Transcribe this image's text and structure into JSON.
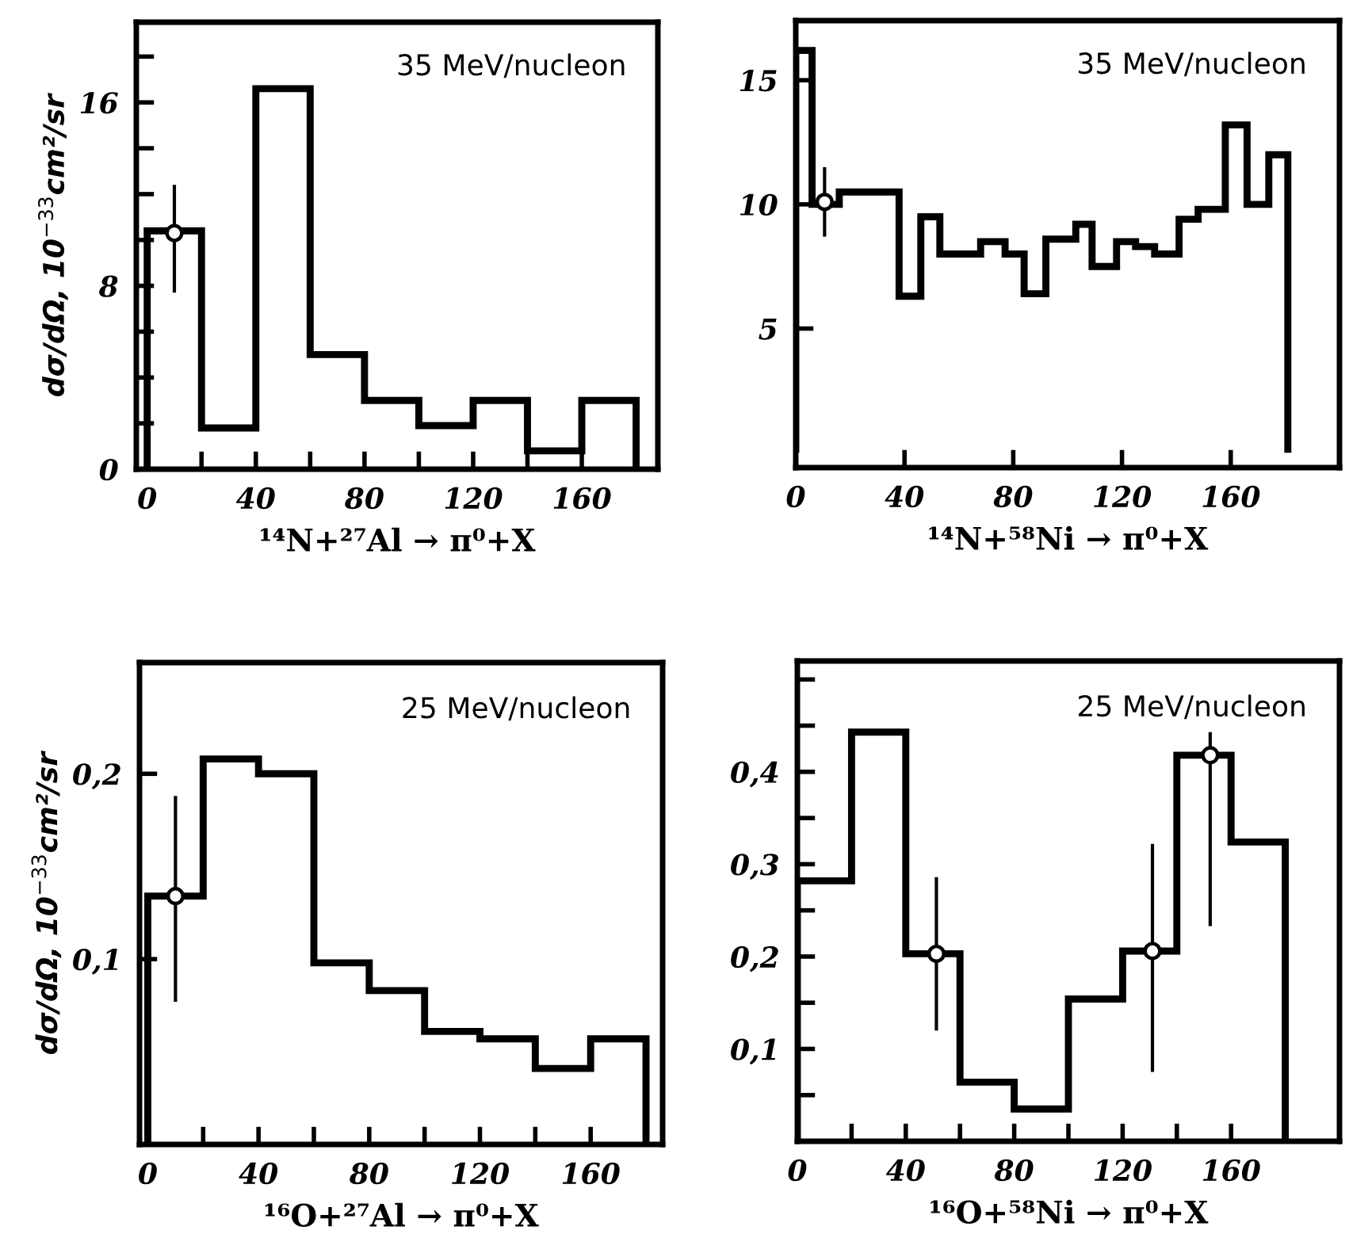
{
  "chart_data": [
    {
      "type": "histogram",
      "ylabel": "dσ/dΩ, 10$^{−33}$cm²/sr",
      "xlabel": "¹⁴N+²⁷Al → π⁰+X",
      "annotations": [
        "35 MeV/nucleon"
      ],
      "xlim": [
        -4,
        188
      ],
      "ylim": [
        0,
        19.5
      ],
      "xticks": [
        0,
        {
          "value": 20,
          "label": null
        },
        40,
        {
          "value": 60,
          "label": null
        },
        80,
        {
          "value": 100,
          "label": null
        },
        120,
        {
          "value": 140,
          "label": null
        },
        160
      ],
      "yticks": [
        0,
        {
          "value": 2,
          "label": null
        },
        {
          "value": 4,
          "label": null
        },
        {
          "value": 6,
          "label": null
        },
        8,
        {
          "value": 10,
          "label": null
        },
        {
          "value": 12,
          "label": null
        },
        {
          "value": 14,
          "label": null
        },
        16,
        {
          "value": 18,
          "label": null
        }
      ],
      "series": [
        {
          "type": "histogram",
          "color": "#000000",
          "bins": [
            0,
            20,
            40,
            60,
            80,
            100,
            120,
            140,
            160,
            180
          ],
          "values": [
            10.4,
            1.8,
            16.6,
            5,
            3,
            1.9,
            3,
            0.8,
            3
          ]
        },
        {
          "type": "scatter",
          "color": "#000000",
          "marker": "circle",
          "x": [
            10
          ],
          "values": [
            10.3
          ],
          "errors": [
            [
              7.7,
              12.4
            ]
          ]
        }
      ]
    },
    {
      "type": "histogram",
      "xlabel": "¹⁴N+⁵⁸Ni → π⁰+X",
      "annotations": [
        "35 MeV/nucleon"
      ],
      "xlim": [
        0,
        200
      ],
      "ylim": [
        -0.6,
        17.4
      ],
      "xticks": [
        0,
        40,
        80,
        120,
        160
      ],
      "yticks": [
        5,
        10,
        15
      ],
      "series": [
        {
          "type": "histogram",
          "color": "#000000",
          "bins": [
            0,
            6,
            16,
            38,
            46,
            53,
            68,
            77,
            84,
            92,
            103,
            109,
            118,
            125,
            132,
            141,
            148,
            158,
            166,
            174,
            181
          ],
          "values": [
            16.2,
            10,
            10.5,
            6.3,
            9.5,
            8,
            8.5,
            8,
            6.4,
            8.6,
            9.2,
            7.5,
            8.5,
            8.3,
            8,
            9.4,
            9.8,
            13.2,
            10,
            12
          ]
        },
        {
          "type": "scatter",
          "color": "#000000",
          "marker": "circle",
          "x": [
            10.6
          ],
          "values": [
            10.1
          ],
          "errors": [
            [
              8.7,
              11.5
            ]
          ]
        }
      ]
    },
    {
      "type": "histogram",
      "ylabel": "dσ/dΩ, 10$^{−33}$cm²/sr",
      "xlabel": "¹⁶O+²⁷Al → π⁰+X",
      "annotations": [
        "25 MeV/nucleon"
      ],
      "xlim": [
        -3,
        186
      ],
      "ylim": [
        0,
        0.26
      ],
      "xticks": [
        0,
        {
          "value": 20,
          "label": null
        },
        40,
        {
          "value": 60,
          "label": null
        },
        80,
        {
          "value": 100,
          "label": null
        },
        120,
        {
          "value": 140,
          "label": null
        },
        160
      ],
      "yticks": [
        {
          "value": 0.1,
          "label": "0,1"
        },
        {
          "value": 0.2,
          "label": "0,2"
        }
      ],
      "series": [
        {
          "type": "histogram",
          "color": "#000000",
          "bins": [
            0,
            20,
            40,
            60,
            80,
            100,
            120,
            140,
            160,
            180
          ],
          "values": [
            0.134,
            0.208,
            0.2,
            0.098,
            0.083,
            0.061,
            0.057,
            0.041,
            0.057
          ]
        },
        {
          "type": "scatter",
          "color": "#000000",
          "marker": "circle",
          "x": [
            10
          ],
          "values": [
            0.134
          ],
          "errors": [
            [
              0.077,
              0.188
            ]
          ]
        }
      ]
    },
    {
      "type": "histogram",
      "xlabel": "¹⁶O+⁵⁸Ni → π⁰+X",
      "annotations": [
        "25 MeV/nucleon"
      ],
      "xlim": [
        0,
        200
      ],
      "ylim": [
        0,
        0.52
      ],
      "xticks": [
        0,
        {
          "value": 20,
          "label": null
        },
        40,
        {
          "value": 60,
          "label": null
        },
        80,
        {
          "value": 100,
          "label": null
        },
        120,
        {
          "value": 140,
          "label": null
        },
        160,
        {
          "value": 180,
          "label": null
        }
      ],
      "yticks": [
        {
          "value": 0.05,
          "label": null
        },
        {
          "value": 0.1,
          "label": "0,1"
        },
        {
          "value": 0.15,
          "label": null
        },
        {
          "value": 0.2,
          "label": "0,2"
        },
        {
          "value": 0.25,
          "label": null
        },
        {
          "value": 0.3,
          "label": "0,3"
        },
        {
          "value": 0.35,
          "label": null
        },
        {
          "value": 0.4,
          "label": "0,4"
        },
        {
          "value": 0.45,
          "label": null
        },
        {
          "value": 0.5,
          "label": null
        }
      ],
      "series": [
        {
          "type": "histogram",
          "color": "#000000",
          "bins": [
            0,
            20,
            40,
            60,
            80,
            100,
            120,
            140,
            160,
            180
          ],
          "values": [
            0.282,
            0.443,
            0.203,
            0.064,
            0.035,
            0.154,
            0.206,
            0.418,
            0.324
          ]
        },
        {
          "type": "scatter",
          "color": "#000000",
          "marker": "circle",
          "x": [
            51.3,
            131,
            152.3
          ],
          "values": [
            0.203,
            0.206,
            0.418
          ],
          "errors": [
            [
              0.12,
              0.286
            ],
            [
              0.075,
              0.322
            ],
            [
              0.233,
              0.443
            ]
          ]
        }
      ]
    }
  ]
}
